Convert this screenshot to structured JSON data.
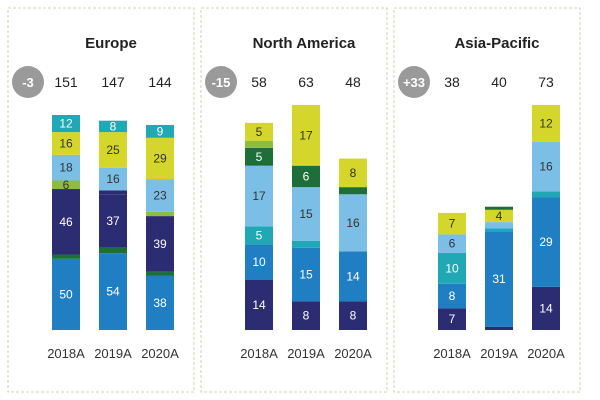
{
  "colors": {
    "navy": "#2c2c72",
    "blue": "#1f7fc2",
    "light_blue": "#7bbfe7",
    "teal": "#20a9b4",
    "dark_green": "#1e6e3a",
    "lime": "#d4d62b",
    "light_green": "#8dbd3b",
    "cyan": "#1aa6c8",
    "grey_badge": "#9a9a9a",
    "panel_border": "#c9d6a8"
  },
  "chart_data": [
    {
      "type": "bar",
      "stacked": true,
      "title": "Europe",
      "change": "-3",
      "categories": [
        "2018A",
        "2019A",
        "2020A"
      ],
      "totals": [
        "151",
        "147",
        "144"
      ],
      "stacks": [
        [
          {
            "value": 50,
            "label": "50",
            "color": "blue"
          },
          {
            "value": 3,
            "label": "3",
            "color": "dark_green"
          },
          {
            "value": 46,
            "label": "46",
            "color": "navy"
          },
          {
            "value": 6,
            "label": "6",
            "color": "light_green"
          },
          {
            "value": 18,
            "label": "18",
            "color": "light_blue"
          },
          {
            "value": 16,
            "label": "16",
            "color": "lime"
          },
          {
            "value": 12,
            "label": "12",
            "color": "teal"
          }
        ],
        [
          {
            "value": 54,
            "label": "54",
            "color": "blue"
          },
          {
            "value": 4,
            "label": "4",
            "color": "dark_green"
          },
          {
            "value": 37,
            "label": "37",
            "color": "navy"
          },
          {
            "value": 3,
            "label": "3",
            "color": "navy"
          },
          {
            "value": 16,
            "label": "16",
            "color": "light_blue"
          },
          {
            "value": 25,
            "label": "25",
            "color": "lime"
          },
          {
            "value": 8,
            "label": "8",
            "color": "teal"
          }
        ],
        [
          {
            "value": 38,
            "label": "38",
            "color": "blue"
          },
          {
            "value": 3,
            "label": "3",
            "color": "dark_green"
          },
          {
            "value": 39,
            "label": "39",
            "color": "navy"
          },
          {
            "value": 3,
            "label": "3",
            "color": "light_green"
          },
          {
            "value": 23,
            "label": "23",
            "color": "light_blue"
          },
          {
            "value": 29,
            "label": "29",
            "color": "lime"
          },
          {
            "value": 9,
            "label": "9",
            "color": "teal"
          }
        ]
      ]
    },
    {
      "type": "bar",
      "stacked": true,
      "title": "North America",
      "change": "-15",
      "categories": [
        "2018A",
        "2019A",
        "2020A"
      ],
      "totals": [
        "58",
        "63",
        "48"
      ],
      "stacks": [
        [
          {
            "value": 14,
            "label": "14",
            "color": "navy"
          },
          {
            "value": 10,
            "label": "10",
            "color": "blue"
          },
          {
            "value": 5,
            "label": "5",
            "color": "teal"
          },
          {
            "value": 17,
            "label": "17",
            "color": "light_blue"
          },
          {
            "value": 5,
            "label": "5",
            "color": "dark_green"
          },
          {
            "value": 2,
            "label": "2",
            "color": "light_green"
          },
          {
            "value": 5,
            "label": "5",
            "color": "lime"
          }
        ],
        [
          {
            "value": 8,
            "label": "8",
            "color": "navy"
          },
          {
            "value": 15,
            "label": "15",
            "color": "blue"
          },
          {
            "value": 2,
            "label": "2",
            "color": "teal"
          },
          {
            "value": 15,
            "label": "15",
            "color": "light_blue"
          },
          {
            "value": 6,
            "label": "6",
            "color": "dark_green"
          },
          {
            "value": 17,
            "label": "17",
            "color": "lime"
          }
        ],
        [
          {
            "value": 8,
            "label": "8",
            "color": "navy"
          },
          {
            "value": 14,
            "label": "14",
            "color": "blue"
          },
          {
            "value": 16,
            "label": "16",
            "color": "light_blue"
          },
          {
            "value": 2,
            "label": "2",
            "color": "dark_green"
          },
          {
            "value": 8,
            "label": "8",
            "color": "lime"
          }
        ]
      ]
    },
    {
      "type": "bar",
      "stacked": true,
      "title": "Asia-Pacific",
      "change": "+33",
      "categories": [
        "2018A",
        "2019A",
        "2020A"
      ],
      "totals": [
        "38",
        "40",
        "73"
      ],
      "stacks": [
        [
          {
            "value": 7,
            "label": "7",
            "color": "navy"
          },
          {
            "value": 8,
            "label": "8",
            "color": "blue"
          },
          {
            "value": 10,
            "label": "10",
            "color": "teal"
          },
          {
            "value": 6,
            "label": "6",
            "color": "light_blue"
          },
          {
            "value": 7,
            "label": "7",
            "color": "lime"
          }
        ],
        [
          {
            "value": 1,
            "label": "1",
            "color": "navy"
          },
          {
            "value": 31,
            "label": "31",
            "color": "blue"
          },
          {
            "value": 1,
            "label": "1",
            "color": "cyan"
          },
          {
            "value": 2,
            "label": "2",
            "color": "light_blue"
          },
          {
            "value": 4,
            "label": "4",
            "color": "lime"
          },
          {
            "value": 1,
            "label": "1",
            "color": "dark_green"
          }
        ],
        [
          {
            "value": 14,
            "label": "14",
            "color": "navy"
          },
          {
            "value": 29,
            "label": "29",
            "color": "blue"
          },
          {
            "value": 2,
            "label": "2",
            "color": "teal"
          },
          {
            "value": 16,
            "label": "16",
            "color": "light_blue"
          },
          {
            "value": 12,
            "label": "12",
            "color": "lime"
          }
        ]
      ]
    }
  ]
}
